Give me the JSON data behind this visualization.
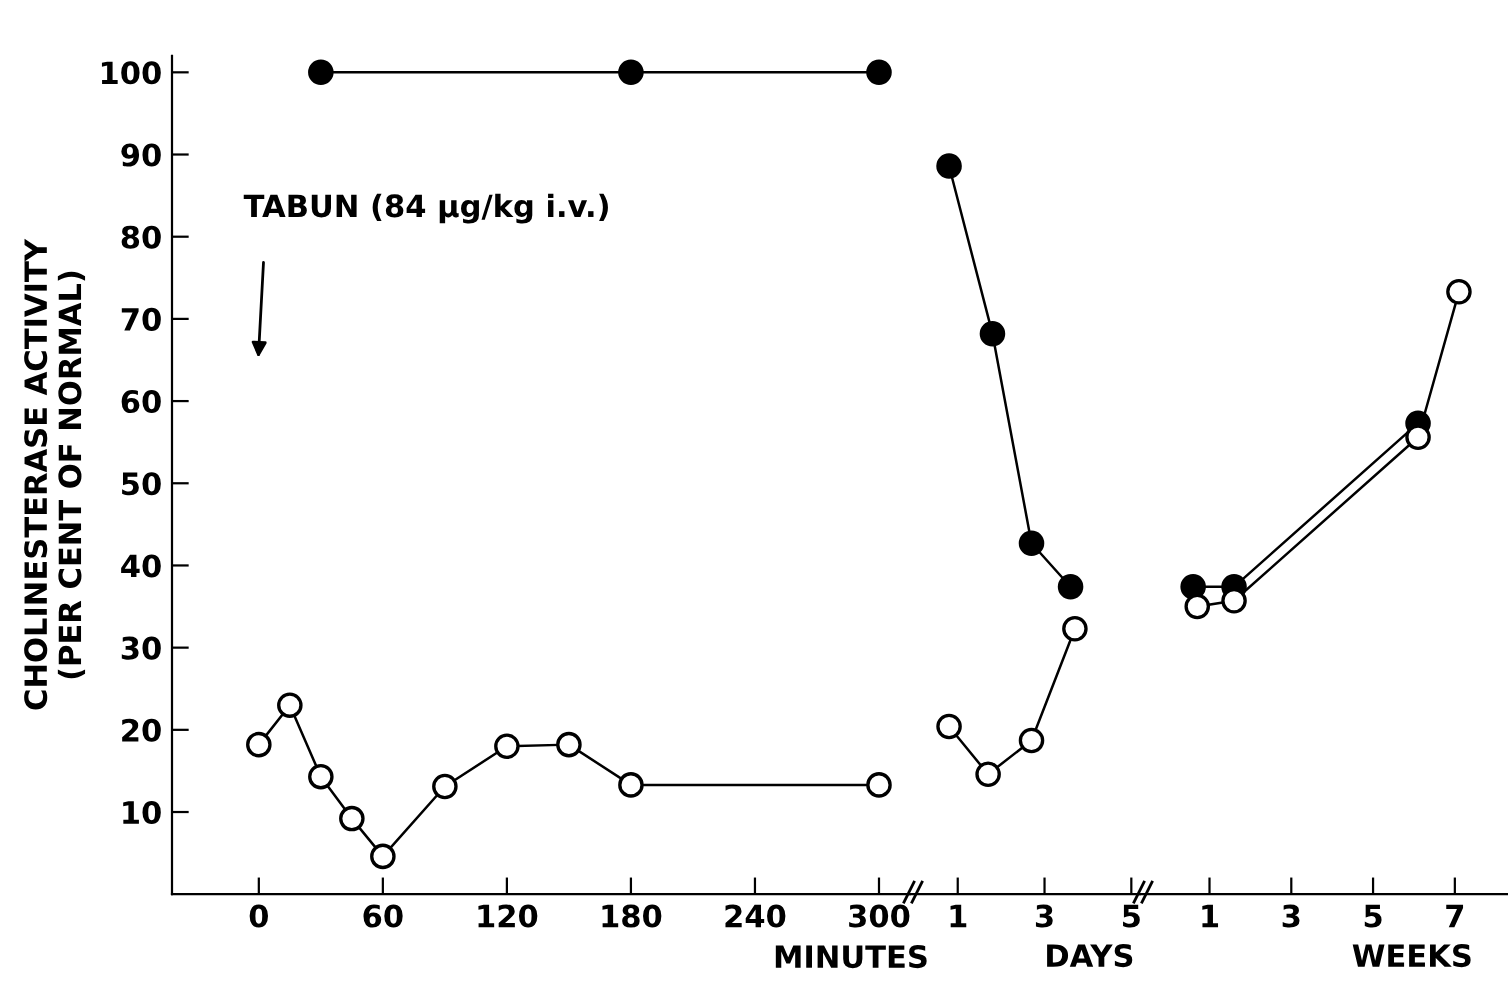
{
  "chart_data": [
    {
      "type": "line",
      "xlabel": "MINUTES",
      "ylabel": "CHOLINESTERASE ACTIVITY\n(PER CENT OF NORMAL)",
      "annotations": [
        "TABUN (84 µg/kg i.v.)"
      ],
      "series": [
        {
          "color": "#000000",
          "x": [
            30,
            180,
            300
          ],
          "values": [
            100,
            100,
            100
          ]
        },
        {
          "color": "#ffffff",
          "x": [
            0,
            15,
            30,
            45,
            60,
            90,
            120,
            150,
            180,
            300
          ],
          "values": [
            18.2,
            23,
            14.3,
            9.2,
            4.6,
            13.1,
            18,
            18.2,
            13.3,
            13.3
          ]
        }
      ],
      "xlim": [
        -42,
        315
      ],
      "ylim": [
        0,
        102
      ],
      "xticks": [
        0,
        60,
        120,
        180,
        240,
        300
      ],
      "yticks": [
        10,
        20,
        30,
        40,
        50,
        60,
        70,
        80,
        90,
        100
      ],
      "marker": "circle",
      "line_style": "solid"
    },
    {
      "type": "line",
      "xlabel": "DAYS",
      "series": [
        {
          "color": "#000000",
          "x": [
            0.8,
            1.8,
            2.7,
            3.6
          ],
          "values": [
            88.6,
            68.2,
            42.7,
            37.4
          ]
        },
        {
          "color": "#ffffff",
          "x": [
            0.8,
            1.7,
            2.7,
            3.7
          ],
          "values": [
            20.4,
            14.6,
            18.7,
            32.3
          ]
        }
      ],
      "xlim": [
        -0.1,
        5.2
      ],
      "ylim": [
        0,
        100
      ],
      "xticks": [
        1,
        3,
        5
      ],
      "yticks": [
        10,
        20,
        30,
        40,
        50,
        60,
        70,
        80,
        90,
        100
      ],
      "tick_labels": "x",
      "marker": "circle",
      "line_style": "solid"
    },
    {
      "type": "line",
      "xlabel": "WEEKS",
      "series": [
        {
          "color": "#000000",
          "x": [
            0.6,
            1.6,
            6.1
          ],
          "values": [
            37.4,
            37.4,
            57.3
          ]
        },
        {
          "color": "#ffffff",
          "x": [
            0.7,
            1.6,
            6.1,
            7.1
          ],
          "values": [
            35,
            35.7,
            55.6,
            73.3
          ]
        }
      ],
      "xlim": [
        -0.7,
        8.3
      ],
      "ylim": [
        0,
        100
      ],
      "xticks": [
        1,
        3,
        5,
        7
      ],
      "yticks": [
        10,
        20,
        30,
        40,
        50,
        60,
        70,
        80,
        90,
        100
      ],
      "tick_labels": "x",
      "marker": "circle",
      "line_style": "solid"
    }
  ]
}
